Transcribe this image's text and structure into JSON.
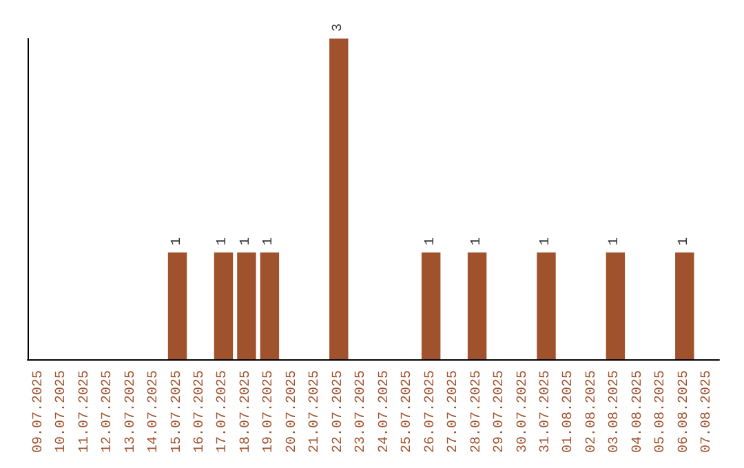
{
  "chart_data": {
    "type": "bar",
    "categories": [
      "09.07.2025",
      "10.07.2025",
      "11.07.2025",
      "12.07.2025",
      "13.07.2025",
      "14.07.2025",
      "15.07.2025",
      "16.07.2025",
      "17.07.2025",
      "18.07.2025",
      "19.07.2025",
      "20.07.2025",
      "21.07.2025",
      "22.07.2025",
      "23.07.2025",
      "24.07.2025",
      "25.07.2025",
      "26.07.2025",
      "27.07.2025",
      "28.07.2025",
      "29.07.2025",
      "30.07.2025",
      "31.07.2025",
      "01.08.2025",
      "02.08.2025",
      "03.08.2025",
      "04.08.2025",
      "05.08.2025",
      "06.08.2025",
      "07.08.2025"
    ],
    "values": [
      0,
      0,
      0,
      0,
      0,
      0,
      1,
      0,
      1,
      1,
      1,
      0,
      0,
      3,
      0,
      0,
      0,
      1,
      0,
      1,
      0,
      0,
      1,
      0,
      0,
      1,
      0,
      0,
      1,
      0
    ],
    "value_labels": [
      null,
      null,
      null,
      null,
      null,
      null,
      "1",
      null,
      "1",
      "1",
      "1",
      null,
      null,
      "3",
      null,
      null,
      null,
      "1",
      null,
      "1",
      null,
      null,
      "1",
      null,
      null,
      "1",
      null,
      null,
      "1",
      null
    ],
    "color": "#a0522d",
    "tick_labels": "x"
  }
}
